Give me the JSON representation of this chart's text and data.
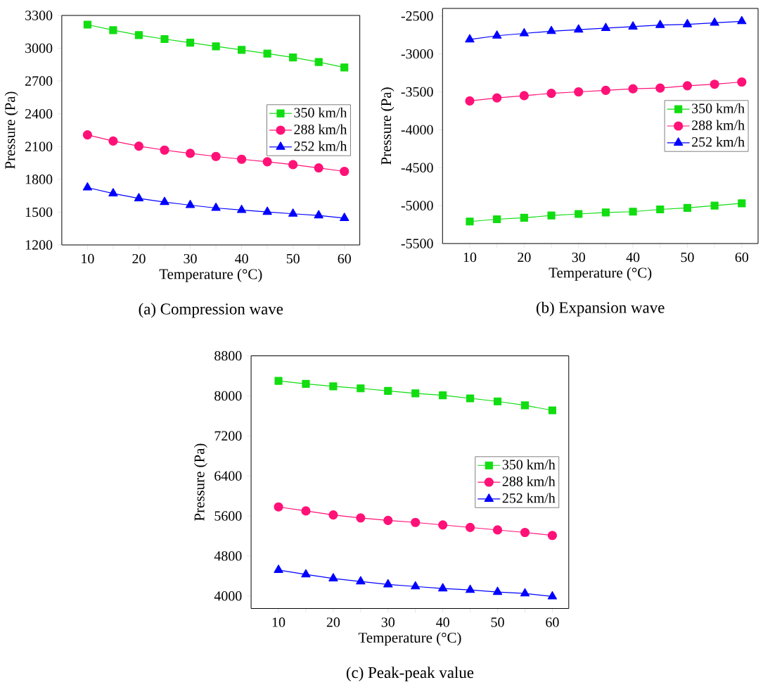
{
  "chart_data": [
    {
      "type": "line",
      "title": "(a)   Compression wave",
      "xlabel": "Temperature (°C)",
      "ylabel": "Pressure (Pa)",
      "x": [
        10,
        15,
        20,
        25,
        30,
        35,
        40,
        45,
        50,
        55,
        60
      ],
      "series": [
        {
          "name": "350 km/h",
          "color": "#11dd11",
          "marker": "square",
          "values": [
            3216,
            3165,
            3120,
            3084,
            3051,
            3017,
            2985,
            2951,
            2916,
            2874,
            2824
          ]
        },
        {
          "name": "288 km/h",
          "color": "#ff1177",
          "marker": "circle",
          "values": [
            2207,
            2151,
            2104,
            2068,
            2038,
            2010,
            1984,
            1961,
            1935,
            1905,
            1873
          ]
        },
        {
          "name": "252 km/h",
          "color": "#0000ff",
          "marker": "triangle",
          "values": [
            1725,
            1671,
            1626,
            1592,
            1564,
            1538,
            1519,
            1502,
            1485,
            1470,
            1446
          ]
        }
      ],
      "xlim": [
        5,
        63
      ],
      "ylim": [
        1200,
        3300
      ],
      "xticks": [
        10,
        {
          "value": 15,
          "label": null
        },
        20,
        {
          "value": 25,
          "label": null
        },
        30,
        {
          "value": 35,
          "label": null
        },
        40,
        {
          "value": 45,
          "label": null
        },
        50,
        {
          "value": 55,
          "label": null
        },
        60
      ],
      "yticks": [
        1200,
        1500,
        1800,
        2100,
        2400,
        2700,
        3000,
        3300
      ],
      "legend": "right"
    },
    {
      "type": "line",
      "title": "(b) Expansion wave",
      "xlabel": "Temperature (°C)",
      "ylabel": "Pressure (Pa)",
      "x": [
        10,
        15,
        20,
        25,
        30,
        35,
        40,
        45,
        50,
        55,
        60
      ],
      "series": [
        {
          "name": "350 km/h",
          "color": "#11dd11",
          "marker": "square",
          "values": [
            -5210,
            -5180,
            -5160,
            -5130,
            -5110,
            -5090,
            -5080,
            -5050,
            -5030,
            -5000,
            -4970
          ]
        },
        {
          "name": "288 km/h",
          "color": "#ff1177",
          "marker": "circle",
          "values": [
            -3620,
            -3580,
            -3550,
            -3520,
            -3500,
            -3480,
            -3460,
            -3450,
            -3420,
            -3400,
            -3370
          ]
        },
        {
          "name": "252 km/h",
          "color": "#0000ff",
          "marker": "triangle",
          "values": [
            -2810,
            -2760,
            -2730,
            -2700,
            -2680,
            -2660,
            -2640,
            -2620,
            -2610,
            -2590,
            -2570
          ]
        }
      ],
      "xlim": [
        5,
        63
      ],
      "ylim": [
        -5500,
        -2400
      ],
      "xticks": [
        10,
        {
          "value": 15,
          "label": null
        },
        20,
        {
          "value": 25,
          "label": null
        },
        30,
        {
          "value": 35,
          "label": null
        },
        40,
        {
          "value": 45,
          "label": null
        },
        50,
        {
          "value": 55,
          "label": null
        },
        60
      ],
      "yticks": [
        -5500,
        -5000,
        -4500,
        -4000,
        -3500,
        -3000,
        -2500
      ],
      "legend": "right"
    },
    {
      "type": "line",
      "title": "(c) Peak-peak value",
      "xlabel": "Temperature (°C)",
      "ylabel": "Pressure (Pa)",
      "x": [
        10,
        15,
        20,
        25,
        30,
        35,
        40,
        45,
        50,
        55,
        60
      ],
      "series": [
        {
          "name": "350 km/h",
          "color": "#11dd11",
          "marker": "square",
          "values": [
            8300,
            8240,
            8190,
            8150,
            8100,
            8050,
            8010,
            7950,
            7890,
            7810,
            7710
          ]
        },
        {
          "name": "288 km/h",
          "color": "#ff1177",
          "marker": "circle",
          "values": [
            5780,
            5700,
            5620,
            5560,
            5510,
            5470,
            5420,
            5370,
            5320,
            5270,
            5210
          ]
        },
        {
          "name": "252 km/h",
          "color": "#0000ff",
          "marker": "triangle",
          "values": [
            4520,
            4430,
            4350,
            4290,
            4230,
            4190,
            4150,
            4120,
            4080,
            4050,
            3990
          ]
        }
      ],
      "xlim": [
        5,
        63
      ],
      "ylim": [
        3750,
        8800
      ],
      "xticks": [
        10,
        {
          "value": 15,
          "label": null
        },
        20,
        {
          "value": 25,
          "label": null
        },
        30,
        {
          "value": 35,
          "label": null
        },
        40,
        {
          "value": 45,
          "label": null
        },
        50,
        {
          "value": 55,
          "label": null
        },
        60
      ],
      "yticks": [
        4000,
        4800,
        5600,
        6400,
        7200,
        8000,
        8800
      ],
      "legend": "right"
    }
  ]
}
